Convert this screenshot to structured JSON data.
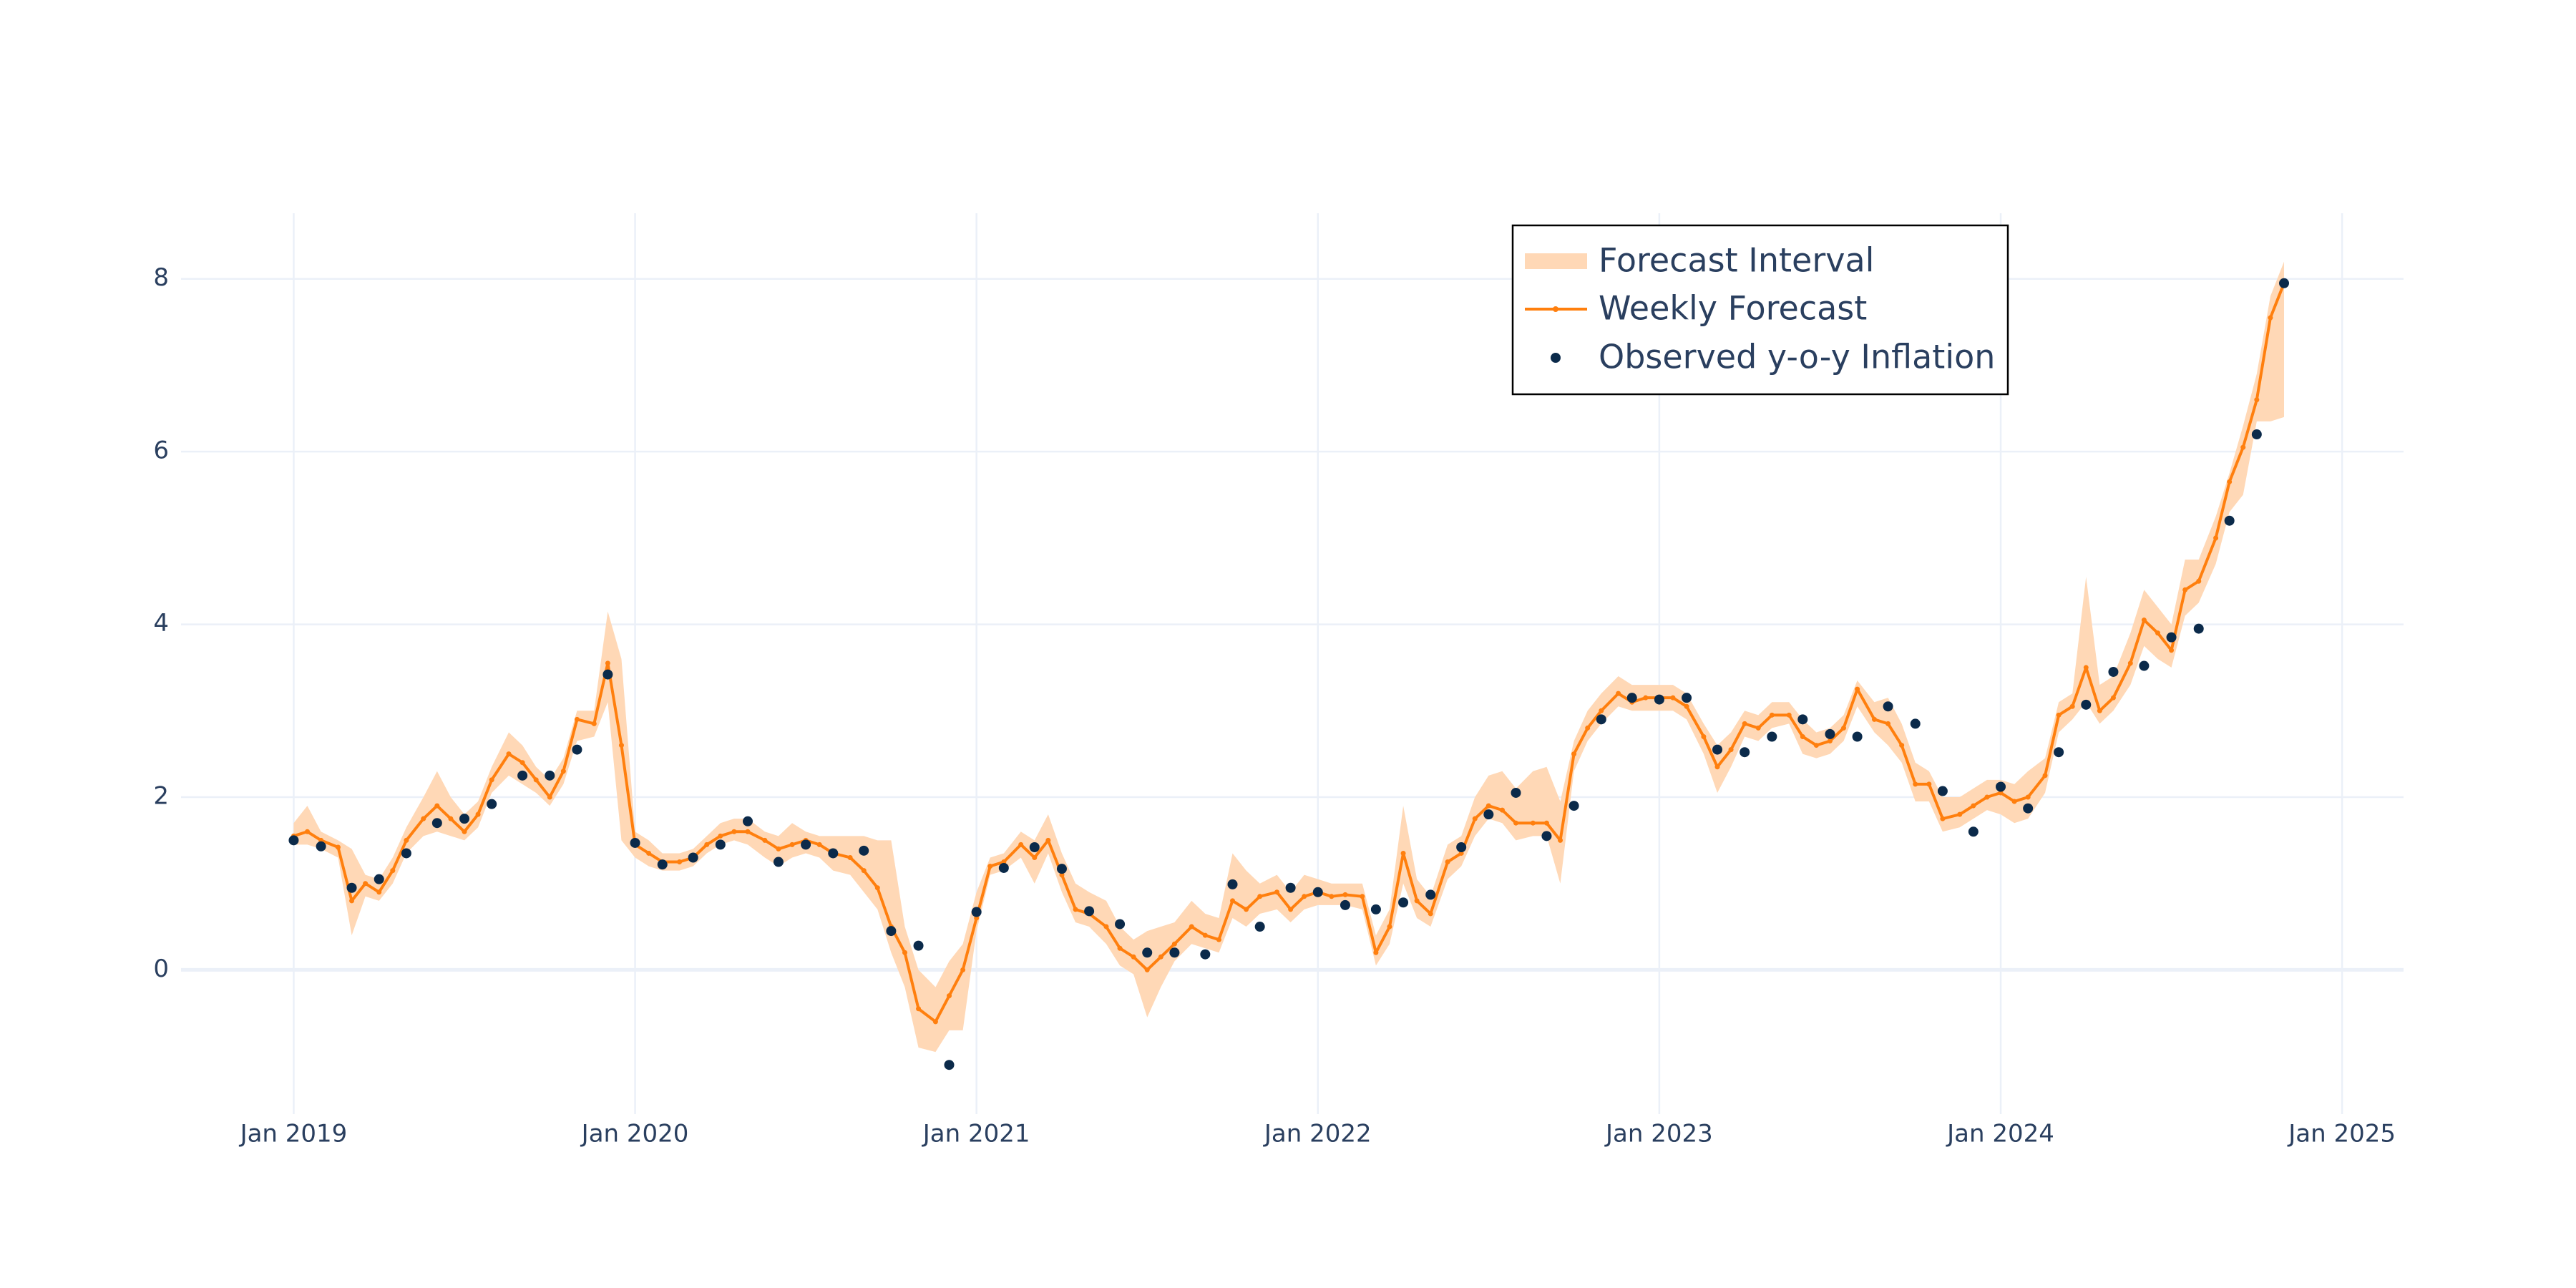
{
  "chart_data": {
    "type": "line",
    "xlim": [
      2018.67,
      2025.18
    ],
    "ylim": [
      -1.67,
      8.76
    ],
    "xticks": [
      {
        "value": 2019,
        "label": "Jan 2019"
      },
      {
        "value": 2020,
        "label": "Jan 2020"
      },
      {
        "value": 2021,
        "label": "Jan 2021"
      },
      {
        "value": 2022,
        "label": "Jan 2022"
      },
      {
        "value": 2023,
        "label": "Jan 2023"
      },
      {
        "value": 2024,
        "label": "Jan 2024"
      },
      {
        "value": 2025,
        "label": "Jan 2025"
      }
    ],
    "yticks": [
      0,
      2,
      4,
      6,
      8
    ],
    "grid": true,
    "series": [
      {
        "name": "Forecast Interval",
        "type": "band",
        "color": "#ffd8b6",
        "x": [
          2019.0,
          2019.04,
          2019.08,
          2019.13,
          2019.17,
          2019.21,
          2019.25,
          2019.29,
          2019.33,
          2019.38,
          2019.42,
          2019.46,
          2019.5,
          2019.54,
          2019.58,
          2019.63,
          2019.67,
          2019.71,
          2019.75,
          2019.79,
          2019.83,
          2019.88,
          2019.92,
          2019.96,
          2020.0,
          2020.04,
          2020.08,
          2020.13,
          2020.17,
          2020.21,
          2020.25,
          2020.29,
          2020.33,
          2020.38,
          2020.42,
          2020.46,
          2020.5,
          2020.54,
          2020.58,
          2020.63,
          2020.67,
          2020.71,
          2020.75,
          2020.79,
          2020.83,
          2020.88,
          2020.92,
          2020.96,
          2021.0,
          2021.04,
          2021.08,
          2021.13,
          2021.17,
          2021.21,
          2021.25,
          2021.29,
          2021.33,
          2021.38,
          2021.42,
          2021.46,
          2021.5,
          2021.54,
          2021.58,
          2021.63,
          2021.67,
          2021.71,
          2021.75,
          2021.79,
          2021.83,
          2021.88,
          2021.92,
          2021.96,
          2022.0,
          2022.04,
          2022.08,
          2022.13,
          2022.17,
          2022.21,
          2022.25,
          2022.29,
          2022.33,
          2022.38,
          2022.42,
          2022.46,
          2022.5,
          2022.54,
          2022.58,
          2022.63,
          2022.67,
          2022.71,
          2022.75,
          2022.79,
          2022.83,
          2022.88,
          2022.92,
          2022.96,
          2023.0,
          2023.04,
          2023.08,
          2023.13,
          2023.17,
          2023.21,
          2023.25,
          2023.29,
          2023.33,
          2023.38,
          2023.42,
          2023.46,
          2023.5,
          2023.54,
          2023.58,
          2023.63,
          2023.67,
          2023.71,
          2023.75,
          2023.79,
          2023.83,
          2023.88,
          2023.92,
          2023.96,
          2024.0,
          2024.04,
          2024.08,
          2024.13,
          2024.17,
          2024.21,
          2024.25,
          2024.29,
          2024.33,
          2024.38,
          2024.42,
          2024.46,
          2024.5,
          2024.54,
          2024.58,
          2024.63,
          2024.67,
          2024.71,
          2024.75,
          2024.79,
          2024.83
        ],
        "lower": [
          1.45,
          1.45,
          1.4,
          1.3,
          0.4,
          0.85,
          0.8,
          1.0,
          1.35,
          1.55,
          1.6,
          1.55,
          1.5,
          1.65,
          2.05,
          2.25,
          2.15,
          2.05,
          1.9,
          2.15,
          2.65,
          2.7,
          3.1,
          1.5,
          1.3,
          1.2,
          1.15,
          1.15,
          1.2,
          1.35,
          1.45,
          1.5,
          1.45,
          1.3,
          1.2,
          1.3,
          1.35,
          1.3,
          1.15,
          1.1,
          0.9,
          0.7,
          0.2,
          -0.2,
          -0.9,
          -0.95,
          -0.7,
          -0.7,
          0.45,
          1.1,
          1.15,
          1.3,
          1.0,
          1.35,
          0.9,
          0.55,
          0.5,
          0.3,
          0.05,
          -0.05,
          -0.55,
          -0.2,
          0.1,
          0.3,
          0.25,
          0.2,
          0.6,
          0.5,
          0.65,
          0.7,
          0.55,
          0.7,
          0.75,
          0.75,
          0.75,
          0.7,
          0.05,
          0.3,
          1.0,
          0.6,
          0.5,
          1.05,
          1.2,
          1.55,
          1.75,
          1.7,
          1.5,
          1.55,
          1.55,
          1.0,
          2.3,
          2.65,
          2.85,
          3.05,
          3.0,
          3.0,
          3.0,
          3.0,
          2.9,
          2.5,
          2.05,
          2.35,
          2.7,
          2.65,
          2.8,
          2.85,
          2.5,
          2.45,
          2.5,
          2.65,
          3.05,
          2.75,
          2.6,
          2.4,
          1.95,
          1.95,
          1.6,
          1.65,
          1.75,
          1.85,
          1.8,
          1.7,
          1.75,
          2.05,
          2.75,
          2.9,
          3.1,
          2.85,
          3.0,
          3.3,
          3.75,
          3.6,
          3.5,
          4.1,
          4.25,
          4.7,
          5.3,
          5.5,
          6.35,
          6.35,
          6.4
        ],
        "upper": [
          1.7,
          1.9,
          1.6,
          1.5,
          1.4,
          1.1,
          1.05,
          1.3,
          1.65,
          2.0,
          2.3,
          2.0,
          1.8,
          1.95,
          2.35,
          2.75,
          2.6,
          2.35,
          2.2,
          2.45,
          3.0,
          3.0,
          4.15,
          3.6,
          1.6,
          1.5,
          1.35,
          1.35,
          1.4,
          1.55,
          1.7,
          1.75,
          1.75,
          1.6,
          1.55,
          1.7,
          1.6,
          1.55,
          1.55,
          1.55,
          1.55,
          1.5,
          1.5,
          0.5,
          0.0,
          -0.2,
          0.1,
          0.3,
          0.9,
          1.3,
          1.35,
          1.6,
          1.5,
          1.8,
          1.35,
          1.0,
          0.9,
          0.8,
          0.5,
          0.35,
          0.45,
          0.5,
          0.55,
          0.8,
          0.65,
          0.6,
          1.35,
          1.15,
          1.0,
          1.1,
          0.9,
          1.1,
          1.05,
          1.0,
          1.0,
          1.0,
          0.4,
          0.7,
          1.9,
          1.05,
          0.85,
          1.45,
          1.55,
          2.0,
          2.25,
          2.3,
          2.1,
          2.3,
          2.35,
          1.95,
          2.65,
          3.0,
          3.2,
          3.4,
          3.3,
          3.3,
          3.3,
          3.3,
          3.2,
          2.85,
          2.6,
          2.75,
          3.0,
          2.95,
          3.1,
          3.1,
          2.9,
          2.75,
          2.8,
          2.95,
          3.35,
          3.1,
          3.15,
          2.85,
          2.4,
          2.3,
          2.0,
          2.0,
          2.1,
          2.2,
          2.2,
          2.15,
          2.3,
          2.45,
          3.1,
          3.2,
          4.55,
          3.3,
          3.4,
          3.9,
          4.4,
          4.2,
          4.0,
          4.75,
          4.75,
          5.25,
          5.75,
          6.3,
          6.9,
          7.8,
          8.2
        ]
      },
      {
        "name": "Weekly Forecast",
        "type": "line",
        "color": "#ff7f0e",
        "x": [
          2019.0,
          2019.04,
          2019.08,
          2019.13,
          2019.17,
          2019.21,
          2019.25,
          2019.29,
          2019.33,
          2019.38,
          2019.42,
          2019.46,
          2019.5,
          2019.54,
          2019.58,
          2019.63,
          2019.67,
          2019.71,
          2019.75,
          2019.79,
          2019.83,
          2019.88,
          2019.92,
          2019.96,
          2020.0,
          2020.04,
          2020.08,
          2020.13,
          2020.17,
          2020.21,
          2020.25,
          2020.29,
          2020.33,
          2020.38,
          2020.42,
          2020.46,
          2020.5,
          2020.54,
          2020.58,
          2020.63,
          2020.67,
          2020.71,
          2020.75,
          2020.79,
          2020.83,
          2020.88,
          2020.92,
          2020.96,
          2021.0,
          2021.04,
          2021.08,
          2021.13,
          2021.17,
          2021.21,
          2021.25,
          2021.29,
          2021.33,
          2021.38,
          2021.42,
          2021.46,
          2021.5,
          2021.54,
          2021.58,
          2021.63,
          2021.67,
          2021.71,
          2021.75,
          2021.79,
          2021.83,
          2021.88,
          2021.92,
          2021.96,
          2022.0,
          2022.04,
          2022.08,
          2022.13,
          2022.17,
          2022.21,
          2022.25,
          2022.29,
          2022.33,
          2022.38,
          2022.42,
          2022.46,
          2022.5,
          2022.54,
          2022.58,
          2022.63,
          2022.67,
          2022.71,
          2022.75,
          2022.79,
          2022.83,
          2022.88,
          2022.92,
          2022.96,
          2023.0,
          2023.04,
          2023.08,
          2023.13,
          2023.17,
          2023.21,
          2023.25,
          2023.29,
          2023.33,
          2023.38,
          2023.42,
          2023.46,
          2023.5,
          2023.54,
          2023.58,
          2023.63,
          2023.67,
          2023.71,
          2023.75,
          2023.79,
          2023.83,
          2023.88,
          2023.92,
          2023.96,
          2024.0,
          2024.04,
          2024.08,
          2024.13,
          2024.17,
          2024.21,
          2024.25,
          2024.29,
          2024.33,
          2024.38,
          2024.42,
          2024.46,
          2024.5,
          2024.54,
          2024.58,
          2024.63,
          2024.67,
          2024.71,
          2024.75,
          2024.79,
          2024.83
        ],
        "values": [
          1.55,
          1.6,
          1.5,
          1.42,
          0.8,
          1.0,
          0.9,
          1.15,
          1.5,
          1.75,
          1.9,
          1.75,
          1.6,
          1.8,
          2.2,
          2.5,
          2.4,
          2.2,
          2.0,
          2.3,
          2.9,
          2.85,
          3.55,
          2.6,
          1.45,
          1.35,
          1.25,
          1.25,
          1.3,
          1.45,
          1.55,
          1.6,
          1.6,
          1.5,
          1.4,
          1.45,
          1.5,
          1.45,
          1.35,
          1.3,
          1.15,
          0.95,
          0.5,
          0.2,
          -0.45,
          -0.6,
          -0.3,
          0.0,
          0.6,
          1.2,
          1.25,
          1.45,
          1.3,
          1.5,
          1.1,
          0.7,
          0.65,
          0.5,
          0.25,
          0.15,
          0.0,
          0.15,
          0.3,
          0.5,
          0.4,
          0.35,
          0.8,
          0.7,
          0.85,
          0.9,
          0.7,
          0.85,
          0.9,
          0.85,
          0.87,
          0.85,
          0.2,
          0.5,
          1.35,
          0.8,
          0.65,
          1.25,
          1.35,
          1.75,
          1.9,
          1.85,
          1.7,
          1.7,
          1.7,
          1.5,
          2.5,
          2.8,
          3.0,
          3.2,
          3.1,
          3.15,
          3.15,
          3.15,
          3.05,
          2.7,
          2.35,
          2.55,
          2.85,
          2.8,
          2.95,
          2.95,
          2.7,
          2.6,
          2.65,
          2.8,
          3.25,
          2.9,
          2.85,
          2.6,
          2.15,
          2.15,
          1.75,
          1.8,
          1.9,
          2.0,
          2.05,
          1.95,
          2.0,
          2.25,
          2.95,
          3.05,
          3.5,
          3.0,
          3.15,
          3.55,
          4.05,
          3.9,
          3.7,
          4.4,
          4.5,
          5.0,
          5.65,
          6.05,
          6.6,
          7.55,
          7.95
        ]
      },
      {
        "name": "Observed y-o-y Inflation",
        "type": "scatter",
        "color": "#0b2a4a",
        "x": [
          2019.0,
          2019.08,
          2019.17,
          2019.25,
          2019.33,
          2019.42,
          2019.5,
          2019.58,
          2019.67,
          2019.75,
          2019.83,
          2019.92,
          2020.0,
          2020.08,
          2020.17,
          2020.25,
          2020.33,
          2020.42,
          2020.5,
          2020.58,
          2020.67,
          2020.75,
          2020.83,
          2020.92,
          2021.0,
          2021.08,
          2021.17,
          2021.25,
          2021.33,
          2021.42,
          2021.5,
          2021.58,
          2021.67,
          2021.75,
          2021.83,
          2021.92,
          2022.0,
          2022.08,
          2022.17,
          2022.25,
          2022.33,
          2022.42,
          2022.5,
          2022.58,
          2022.67,
          2022.75,
          2022.83,
          2022.92,
          2023.0,
          2023.08,
          2023.17,
          2023.25,
          2023.33,
          2023.42,
          2023.5,
          2023.58,
          2023.67,
          2023.75,
          2023.83,
          2023.92,
          2024.0,
          2024.08,
          2024.17,
          2024.25,
          2024.33,
          2024.42,
          2024.5,
          2024.58,
          2024.67,
          2024.75,
          2024.83
        ],
        "values": [
          1.5,
          1.43,
          0.95,
          1.05,
          1.35,
          1.7,
          1.75,
          1.92,
          2.25,
          2.25,
          2.55,
          3.42,
          1.47,
          1.22,
          1.3,
          1.45,
          1.72,
          1.25,
          1.45,
          1.35,
          1.38,
          0.45,
          0.28,
          -1.1,
          0.67,
          1.18,
          1.42,
          1.17,
          0.68,
          0.53,
          0.2,
          0.2,
          0.18,
          0.99,
          0.5,
          0.95,
          0.9,
          0.75,
          0.7,
          0.78,
          0.87,
          1.42,
          1.8,
          2.05,
          1.55,
          1.9,
          2.9,
          3.15,
          3.13,
          3.15,
          2.55,
          2.52,
          2.7,
          2.9,
          2.73,
          2.7,
          3.05,
          2.85,
          2.07,
          1.6,
          2.12,
          1.87,
          2.52,
          3.07,
          3.45,
          3.52,
          3.85,
          3.95,
          5.2,
          6.2,
          7.95
        ]
      }
    ]
  }
}
